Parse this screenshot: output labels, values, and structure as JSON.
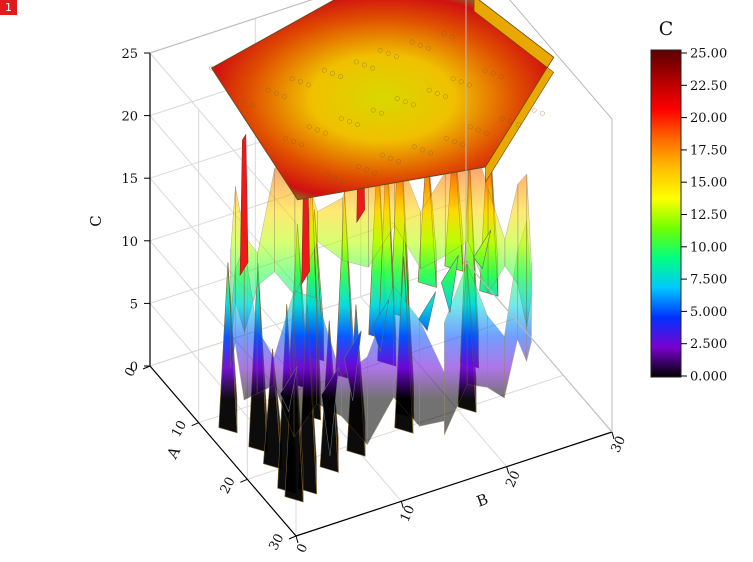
{
  "badge": "1",
  "chart_data": {
    "type": "surface-3d",
    "title": "",
    "xlabel": "A",
    "ylabel": "B",
    "zlabel": "C",
    "xlim": [
      0,
      30
    ],
    "ylim": [
      0,
      30
    ],
    "zlim": [
      0,
      25
    ],
    "x_ticks": [
      "0",
      "10",
      "20",
      "30"
    ],
    "y_ticks": [
      "0",
      "10",
      "20",
      "30"
    ],
    "z_ticks": [
      "0",
      "5",
      "10",
      "15",
      "20",
      "25"
    ],
    "grid": true,
    "colormap": "rainbow",
    "colorbar": {
      "title": "C",
      "labels": [
        "25.00",
        "22.50",
        "20.00",
        "17.50",
        "15.00",
        "12.50",
        "10.00",
        "7.500",
        "5.000",
        "2.500",
        "0.000"
      ],
      "colors": [
        "#5a0000",
        "#b00000",
        "#ff0000",
        "#ff6a00",
        "#ffc000",
        "#ffff00",
        "#70ff00",
        "#00ff80",
        "#00c8ff",
        "#0032ff",
        "#7a00d0",
        "#000000"
      ]
    },
    "top_plateau": {
      "z": 24.5
    },
    "spikes": [
      {
        "a": 28.5,
        "b": 0.5,
        "c": 16.0
      },
      {
        "a": 27.0,
        "b": 0.5,
        "c": 17.0
      },
      {
        "a": 23.0,
        "b": 1.0,
        "c": 11.5
      },
      {
        "a": 28.0,
        "b": 2.0,
        "c": 17.0
      },
      {
        "a": 26.0,
        "b": 5.0,
        "c": 14.0
      },
      {
        "a": 25.0,
        "b": 8.0,
        "c": 14.0
      },
      {
        "a": 20.0,
        "b": 1.0,
        "c": 17.0
      },
      {
        "a": 24.0,
        "b": 13.0,
        "c": 16.0
      },
      {
        "a": 22.0,
        "b": 14.0,
        "c": 17.5
      },
      {
        "a": 24.0,
        "b": 19.0,
        "c": 14.0
      },
      {
        "a": 16.0,
        "b": 0.0,
        "c": 15.5
      },
      {
        "a": 18.0,
        "b": 7.0,
        "c": 22.0
      },
      {
        "a": 13.0,
        "b": 8.0,
        "c": 15.0
      },
      {
        "a": 14.0,
        "b": 12.0,
        "c": 17.0
      },
      {
        "a": 14.0,
        "b": 16.0,
        "c": 20.0
      },
      {
        "a": 18.0,
        "b": 22.0,
        "c": 19.0
      },
      {
        "a": 10.0,
        "b": 11.0,
        "c": 14.0
      },
      {
        "a": 10.0,
        "b": 17.0,
        "c": 17.5
      },
      {
        "a": 8.0,
        "b": 20.0,
        "c": 18.5
      },
      {
        "a": 9.0,
        "b": 28.0,
        "c": 16.0
      },
      {
        "a": 5.0,
        "b": 24.0,
        "c": 13.5
      },
      {
        "a": 4.0,
        "b": 27.0,
        "c": 13.0
      }
    ],
    "troughs": [
      {
        "a": 24.0,
        "b": 6.0,
        "c": 2.0
      },
      {
        "a": 20.0,
        "b": 10.0,
        "c": 3.5
      },
      {
        "a": 17.0,
        "b": 14.0,
        "c": 5.0
      },
      {
        "a": 18.0,
        "b": 18.0,
        "c": 6.0
      },
      {
        "a": 14.0,
        "b": 22.0,
        "c": 4.5
      },
      {
        "a": 12.0,
        "b": 26.0,
        "c": 6.0
      },
      {
        "a": 22.0,
        "b": 3.0,
        "c": 5.5
      }
    ]
  }
}
